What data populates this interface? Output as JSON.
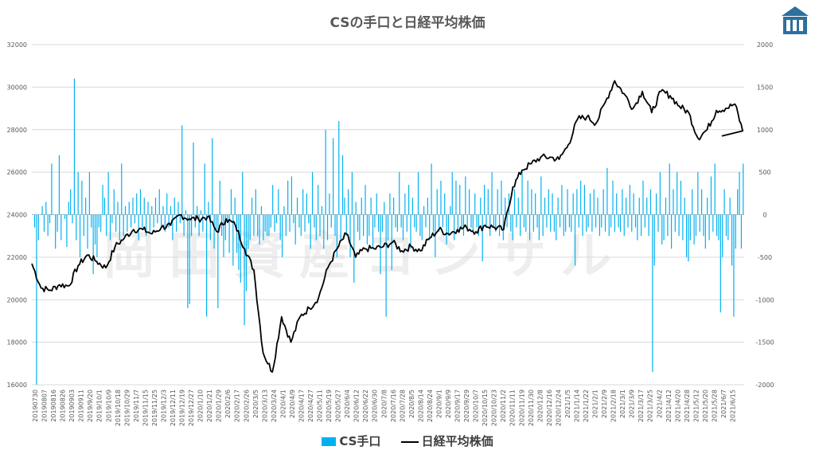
{
  "chart_data": {
    "type": "bar+line",
    "title": "CSの手口と日経平均株価",
    "watermark_text": "岡田資産コンサル",
    "left_axis": {
      "min": 16000,
      "max": 32000,
      "ticks": [
        "32000",
        "30000",
        "28000",
        "26000",
        "24000",
        "22000",
        "20000",
        "18000",
        "16000"
      ]
    },
    "right_axis": {
      "min": -2000,
      "max": 2000,
      "ticks": [
        "2000",
        "1500",
        "1000",
        "500",
        "0",
        "-500",
        "-1000",
        "-1500",
        "-2000"
      ]
    },
    "x_tick_labels": [
      "20190730",
      "20190807",
      "20190816",
      "20190826",
      "20190903",
      "20190911",
      "2019/9/20",
      "2019/10/1",
      "2019/10/9",
      "2019/10/18",
      "2019/10/29",
      "2019/11/7",
      "2019/11/15",
      "2019/11/25",
      "2019/12/3",
      "2019/12/11",
      "2019/12/19",
      "2019/12/27",
      "2020/1/10",
      "2020/1/21",
      "2020/1/29",
      "2020/2/6",
      "2020/2/17",
      "2020/2/26",
      "2020/3/5",
      "2020/3/13",
      "2020/3/24",
      "2020/4/1",
      "2020/4/9",
      "2020/4/17",
      "2020/4/27",
      "2020/5/11",
      "2020/5/19",
      "2020/5/27",
      "2020/6/4",
      "2020/6/12",
      "2020/6/22",
      "2020/6/30",
      "2020/7/8",
      "2020/7/16",
      "2020/7/28",
      "2020/8/5",
      "2020/8/14",
      "2020/8/24",
      "2020/9/1",
      "2020/9/9",
      "2020/9/17",
      "2020/9/29",
      "2020/10/7",
      "2020/10/15",
      "2020/10/23",
      "2020/11/2",
      "2020/11/11",
      "2020/11/19",
      "2020/11/30",
      "2020/12/8",
      "2020/12/16",
      "2020/12/24",
      "2021/1/5",
      "2021/1/14",
      "2021/1/22",
      "2021/2/1",
      "2021/2/9",
      "2021/2/18",
      "2021/3/1",
      "2021/3/9",
      "2021/3/17",
      "2021/3/25",
      "2021/4/2",
      "2021/4/12",
      "2021/4/20",
      "2021/4/28",
      "2021/5/12",
      "2021/5/20",
      "2021/5/28",
      "2021/6/7",
      "2021/6/15"
    ],
    "series": [
      {
        "name": "CS手口",
        "kind": "bar",
        "axis": "right",
        "color": "#00b0f0",
        "values": [
          0,
          -150,
          -2000,
          -300,
          0,
          100,
          -200,
          150,
          -250,
          -100,
          600,
          0,
          -400,
          -200,
          700,
          -300,
          0,
          -50,
          -380,
          150,
          300,
          -100,
          1600,
          -300,
          500,
          -500,
          400,
          -250,
          200,
          -400,
          500,
          -150,
          -700,
          -350,
          -500,
          -150,
          -200,
          350,
          200,
          -250,
          500,
          -300,
          -100,
          300,
          -200,
          150,
          -300,
          600,
          -250,
          100,
          -200,
          150,
          -150,
          200,
          -100,
          250,
          -300,
          300,
          -150,
          200,
          -250,
          150,
          -200,
          100,
          -150,
          200,
          -100,
          300,
          -150,
          100,
          -200,
          250,
          -150,
          100,
          -300,
          200,
          -200,
          150,
          -100,
          1050,
          -250,
          50,
          -1100,
          -1050,
          -250,
          850,
          -150,
          100,
          -250,
          50,
          -200,
          600,
          -1200,
          150,
          -300,
          900,
          -400,
          -200,
          -1100,
          400,
          -250,
          -500,
          -300,
          -100,
          -450,
          300,
          -600,
          200,
          -450,
          -650,
          -800,
          500,
          -1300,
          -900,
          -400,
          -300,
          200,
          -250,
          300,
          -250,
          -350,
          100,
          -300,
          -200,
          -250,
          -250,
          -150,
          350,
          -200,
          -100,
          300,
          -300,
          -500,
          100,
          -250,
          400,
          -200,
          450,
          -100,
          -350,
          200,
          -150,
          -250,
          300,
          -200,
          250,
          -100,
          -400,
          500,
          -150,
          -300,
          350,
          -250,
          100,
          -400,
          1000,
          -300,
          250,
          -150,
          900,
          -250,
          -500,
          1100,
          -300,
          700,
          200,
          -250,
          300,
          -500,
          500,
          -800,
          150,
          -200,
          -300,
          200,
          -250,
          350,
          -350,
          -250,
          200,
          -400,
          -150,
          250,
          -200,
          -700,
          -200,
          150,
          -1200,
          -300,
          250,
          -650,
          200,
          -150,
          -200,
          500,
          -150,
          -300,
          250,
          -200,
          350,
          -400,
          200,
          -150,
          -200,
          500,
          -250,
          -300,
          100,
          -150,
          200,
          -300,
          600,
          -200,
          -500,
          300,
          -200,
          400,
          -150,
          250,
          -350,
          -250,
          100,
          500,
          -300,
          400,
          -200,
          350,
          -150,
          -250,
          450,
          -200,
          300,
          -150,
          -200,
          250,
          -150,
          -250,
          200,
          -550,
          350,
          -150,
          300,
          -250,
          500,
          -150,
          -200,
          300,
          -250,
          400,
          -300,
          200,
          -150,
          250,
          -200,
          -300,
          300,
          -150,
          200,
          -250,
          500,
          -150,
          -200,
          400,
          -300,
          300,
          -200,
          250,
          -150,
          -300,
          450,
          -250,
          200,
          -150,
          300,
          -200,
          250,
          -200,
          -300,
          200,
          -150,
          350,
          -250,
          -200,
          300,
          -150,
          -200,
          250,
          -600,
          300,
          -150,
          400,
          -250,
          350,
          -200,
          -150,
          250,
          -200,
          300,
          -150,
          200,
          -250,
          -150,
          300,
          -200,
          550,
          -250,
          -150,
          400,
          -200,
          250,
          -150,
          -200,
          300,
          -250,
          200,
          -150,
          350,
          -200,
          250,
          -150,
          -300,
          200,
          -250,
          400,
          -150,
          200,
          -250,
          300,
          -1850,
          -600,
          250,
          -200,
          500,
          -350,
          -300,
          200,
          -250,
          600,
          -400,
          300,
          -200,
          500,
          -250,
          400,
          -300,
          200,
          -500,
          -550,
          -300,
          300,
          -350,
          -250,
          500,
          -200,
          300,
          -250,
          -400,
          200,
          -300,
          450,
          -200,
          600,
          -250,
          -300,
          -1150,
          -500,
          300,
          -250,
          -300,
          200,
          -600,
          -1200,
          -400,
          300,
          500,
          -400,
          600
        ]
      },
      {
        "name": "日経平均株価",
        "kind": "line",
        "axis": "left",
        "color": "#000000",
        "keypoints": [
          {
            "x": "20190730",
            "y": 21700
          },
          {
            "x": "20190807",
            "y": 20550
          },
          {
            "x": "20190816",
            "y": 20450
          },
          {
            "x": "20190826",
            "y": 20700
          },
          {
            "x": "20190903",
            "y": 20650
          },
          {
            "x": "20190911",
            "y": 21600
          },
          {
            "x": "2019/9/20",
            "y": 22100
          },
          {
            "x": "2019/10/1",
            "y": 21800
          },
          {
            "x": "2019/10/9",
            "y": 21500
          },
          {
            "x": "2019/10/18",
            "y": 22500
          },
          {
            "x": "2019/10/29",
            "y": 22900
          },
          {
            "x": "2019/11/7",
            "y": 23300
          },
          {
            "x": "2019/11/15",
            "y": 23300
          },
          {
            "x": "2019/11/25",
            "y": 23100
          },
          {
            "x": "2019/12/3",
            "y": 23400
          },
          {
            "x": "2019/12/11",
            "y": 23500
          },
          {
            "x": "2019/12/19",
            "y": 24000
          },
          {
            "x": "2019/12/27",
            "y": 23800
          },
          {
            "x": "2020/1/10",
            "y": 23800
          },
          {
            "x": "2020/1/21",
            "y": 23900
          },
          {
            "x": "2020/1/29",
            "y": 23200
          },
          {
            "x": "2020/2/6",
            "y": 23800
          },
          {
            "x": "2020/2/17",
            "y": 23500
          },
          {
            "x": "2020/2/26",
            "y": 22400
          },
          {
            "x": "2020/3/5",
            "y": 21400
          },
          {
            "x": "2020/3/13",
            "y": 17500
          },
          {
            "x": "2020/3/24",
            "y": 16600
          },
          {
            "x": "2020/4/1",
            "y": 19200
          },
          {
            "x": "2020/4/9",
            "y": 18000
          },
          {
            "x": "2020/4/17",
            "y": 19200
          },
          {
            "x": "2020/4/27",
            "y": 19600
          },
          {
            "x": "2020/5/11",
            "y": 20100
          },
          {
            "x": "2020/5/19",
            "y": 21500
          },
          {
            "x": "2020/5/27",
            "y": 22400
          },
          {
            "x": "2020/6/4",
            "y": 23100
          },
          {
            "x": "2020/6/12",
            "y": 22000
          },
          {
            "x": "2020/6/22",
            "y": 22400
          },
          {
            "x": "2020/6/30",
            "y": 22400
          },
          {
            "x": "2020/7/8",
            "y": 22500
          },
          {
            "x": "2020/7/16",
            "y": 22700
          },
          {
            "x": "2020/7/28",
            "y": 22300
          },
          {
            "x": "2020/8/5",
            "y": 22500
          },
          {
            "x": "2020/8/14",
            "y": 22300
          },
          {
            "x": "2020/8/24",
            "y": 22900
          },
          {
            "x": "2020/9/1",
            "y": 23300
          },
          {
            "x": "2020/9/9",
            "y": 23100
          },
          {
            "x": "2020/9/17",
            "y": 23300
          },
          {
            "x": "2020/9/29",
            "y": 23400
          },
          {
            "x": "2020/10/7",
            "y": 23200
          },
          {
            "x": "2020/10/15",
            "y": 23500
          },
          {
            "x": "2020/10/23",
            "y": 23400
          },
          {
            "x": "2020/11/2",
            "y": 23300
          },
          {
            "x": "2020/11/11",
            "y": 25300
          },
          {
            "x": "2020/11/19",
            "y": 26100
          },
          {
            "x": "2020/11/30",
            "y": 26400
          },
          {
            "x": "2020/12/8",
            "y": 26700
          },
          {
            "x": "2020/12/16",
            "y": 26700
          },
          {
            "x": "2020/12/24",
            "y": 26600
          },
          {
            "x": "2021/1/5",
            "y": 27300
          },
          {
            "x": "2021/1/14",
            "y": 28500
          },
          {
            "x": "2021/1/22",
            "y": 28600
          },
          {
            "x": "2021/2/1",
            "y": 28300
          },
          {
            "x": "2021/2/9",
            "y": 29300
          },
          {
            "x": "2021/2/18",
            "y": 30300
          },
          {
            "x": "2021/3/1",
            "y": 29700
          },
          {
            "x": "2021/3/9",
            "y": 29000
          },
          {
            "x": "2021/3/17",
            "y": 29800
          },
          {
            "x": "2021/3/25",
            "y": 28800
          },
          {
            "x": "2021/4/2",
            "y": 29800
          },
          {
            "x": "2021/4/12",
            "y": 29600
          },
          {
            "x": "2021/4/20",
            "y": 29100
          },
          {
            "x": "2021/4/28",
            "y": 28800
          },
          {
            "x": "2021/5/12",
            "y": 27600
          },
          {
            "x": "2021/5/20",
            "y": 28000
          },
          {
            "x": "2021/5/28",
            "y": 28900
          },
          {
            "x": "2021/6/7",
            "y": 29000
          },
          {
            "x": "2021/6/15",
            "y": 29200
          },
          {
            "x": "end",
            "y": 27700
          }
        ]
      }
    ],
    "legend_position": "bottom",
    "grid": "horizontal"
  }
}
